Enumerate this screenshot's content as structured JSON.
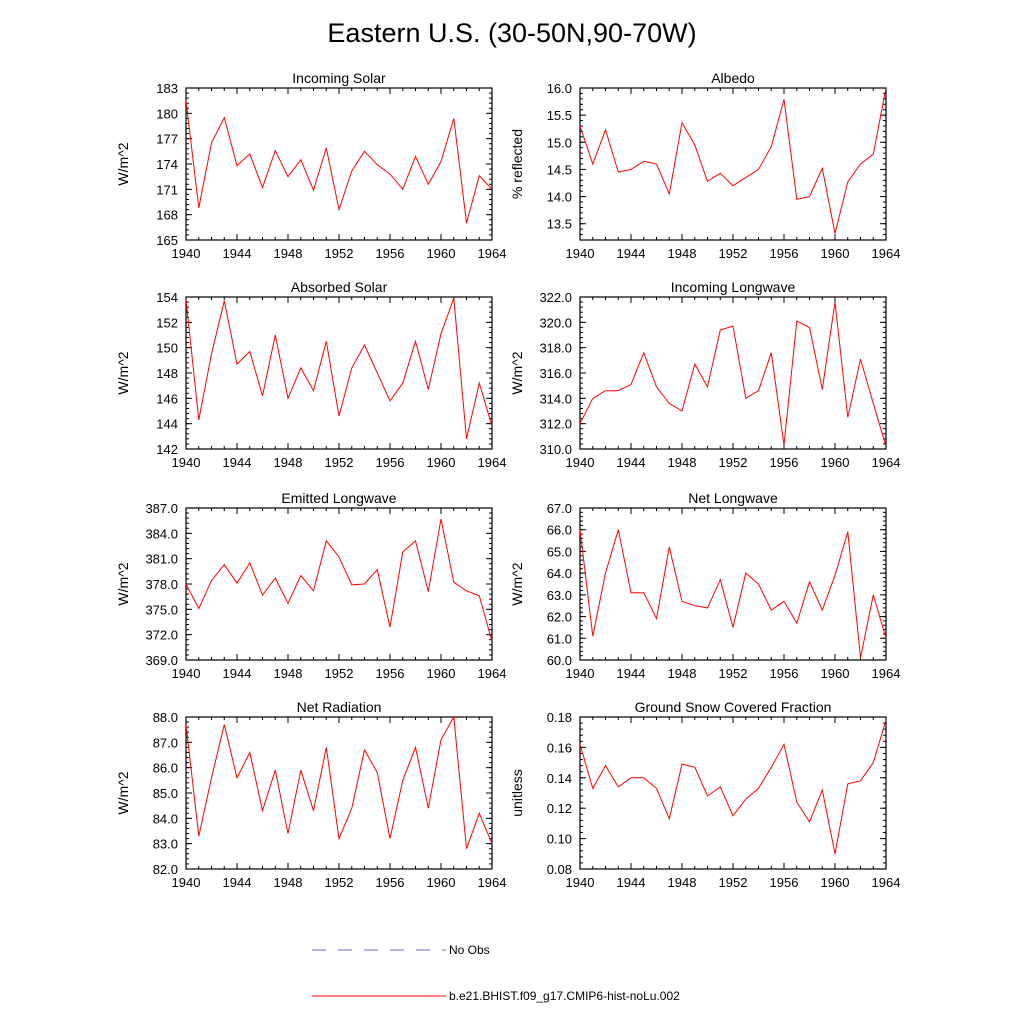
{
  "title": "Eastern U.S. (30-50N,90-70W)",
  "legend": {
    "obs_label": "No Obs",
    "obs_color": "#6b6bd6",
    "model_label": "b.e21.BHIST.f09_g17.CMIP6-hist-noLu.002",
    "model_color": "#ff0000"
  },
  "chart_data": [
    {
      "type": "line",
      "title": "Incoming Solar",
      "ylabel": "W/m^2",
      "xlim": [
        1940,
        1964
      ],
      "ylim": [
        165,
        183
      ],
      "xticks": [
        "1940",
        "1944",
        "1948",
        "1952",
        "1956",
        "1960",
        "1964"
      ],
      "yticks": [
        "165",
        "168",
        "171",
        "174",
        "177",
        "180",
        "183"
      ],
      "grid": false,
      "series": [
        {
          "color": "#ff0000",
          "x": [
            1940,
            1941,
            1942,
            1943,
            1944,
            1945,
            1946,
            1947,
            1948,
            1949,
            1950,
            1951,
            1952,
            1953,
            1954,
            1955,
            1956,
            1957,
            1958,
            1959,
            1960,
            1961,
            1962,
            1963,
            1964
          ],
          "values": [
            181.5,
            168.8,
            176.5,
            179.5,
            173.8,
            175.2,
            171.2,
            175.6,
            172.5,
            174.5,
            170.9,
            175.9,
            168.6,
            173.2,
            175.5,
            173.9,
            172.8,
            171.0,
            174.9,
            171.6,
            174.3,
            179.4,
            167.0,
            172.6,
            171.0
          ]
        }
      ]
    },
    {
      "type": "line",
      "title": "Albedo",
      "ylabel": "% reflected",
      "xlim": [
        1940,
        1964
      ],
      "ylim": [
        13.2,
        16.0
      ],
      "xticks": [
        "1940",
        "1944",
        "1948",
        "1952",
        "1956",
        "1960",
        "1964"
      ],
      "yticks": [
        "13.5",
        "14.0",
        "14.5",
        "15.0",
        "15.5",
        "16.0"
      ],
      "grid": false,
      "series": [
        {
          "color": "#ff0000",
          "x": [
            1940,
            1941,
            1942,
            1943,
            1944,
            1945,
            1946,
            1947,
            1948,
            1949,
            1950,
            1951,
            1952,
            1953,
            1954,
            1955,
            1956,
            1957,
            1958,
            1959,
            1960,
            1961,
            1962,
            1963,
            1964
          ],
          "values": [
            15.3,
            14.6,
            15.23,
            14.45,
            14.5,
            14.65,
            14.6,
            14.05,
            15.36,
            14.95,
            14.28,
            14.43,
            14.2,
            14.35,
            14.5,
            14.92,
            15.79,
            13.95,
            14.0,
            14.52,
            13.32,
            14.27,
            14.6,
            14.78,
            16.0
          ]
        }
      ]
    },
    {
      "type": "line",
      "title": "Absorbed Solar",
      "ylabel": "W/m^2",
      "xlim": [
        1940,
        1964
      ],
      "ylim": [
        142,
        154
      ],
      "xticks": [
        "1940",
        "1944",
        "1948",
        "1952",
        "1956",
        "1960",
        "1964"
      ],
      "yticks": [
        "142",
        "144",
        "146",
        "148",
        "150",
        "152",
        "154"
      ],
      "grid": false,
      "series": [
        {
          "color": "#ff0000",
          "x": [
            1940,
            1941,
            1942,
            1943,
            1944,
            1945,
            1946,
            1947,
            1948,
            1949,
            1950,
            1951,
            1952,
            1953,
            1954,
            1955,
            1956,
            1957,
            1958,
            1959,
            1960,
            1961,
            1962,
            1963,
            1964
          ],
          "values": [
            153.8,
            144.3,
            149.5,
            153.7,
            148.7,
            149.7,
            146.2,
            151.0,
            146.0,
            148.4,
            146.6,
            150.5,
            144.6,
            148.4,
            150.2,
            148.0,
            145.8,
            147.2,
            150.5,
            146.7,
            151.1,
            153.9,
            142.8,
            147.2,
            143.8
          ]
        }
      ]
    },
    {
      "type": "line",
      "title": "Incoming Longwave",
      "ylabel": "W/m^2",
      "xlim": [
        1940,
        1964
      ],
      "ylim": [
        310.0,
        322.0
      ],
      "xticks": [
        "1940",
        "1944",
        "1948",
        "1952",
        "1956",
        "1960",
        "1964"
      ],
      "yticks": [
        "310.0",
        "312.0",
        "314.0",
        "316.0",
        "318.0",
        "320.0",
        "322.0"
      ],
      "grid": false,
      "series": [
        {
          "color": "#ff0000",
          "x": [
            1940,
            1941,
            1942,
            1943,
            1944,
            1945,
            1946,
            1947,
            1948,
            1949,
            1950,
            1951,
            1952,
            1953,
            1954,
            1955,
            1956,
            1957,
            1958,
            1959,
            1960,
            1961,
            1962,
            1963,
            1964
          ],
          "values": [
            312.0,
            314.0,
            314.6,
            314.6,
            315.1,
            317.6,
            314.9,
            313.6,
            313.0,
            316.7,
            314.9,
            319.4,
            319.7,
            314.0,
            314.6,
            317.6,
            310.3,
            320.1,
            319.6,
            314.7,
            321.6,
            312.5,
            317.1,
            313.6,
            310.2
          ]
        }
      ]
    },
    {
      "type": "line",
      "title": "Emitted Longwave",
      "ylabel": "W/m^2",
      "xlim": [
        1940,
        1964
      ],
      "ylim": [
        369.0,
        387.0
      ],
      "xticks": [
        "1940",
        "1944",
        "1948",
        "1952",
        "1956",
        "1960",
        "1964"
      ],
      "yticks": [
        "369.0",
        "372.0",
        "375.0",
        "378.0",
        "381.0",
        "384.0",
        "387.0"
      ],
      "grid": false,
      "series": [
        {
          "color": "#ff0000",
          "x": [
            1940,
            1941,
            1942,
            1943,
            1944,
            1945,
            1946,
            1947,
            1948,
            1949,
            1950,
            1951,
            1952,
            1953,
            1954,
            1955,
            1956,
            1957,
            1958,
            1959,
            1960,
            1961,
            1962,
            1963,
            1964
          ],
          "values": [
            378.0,
            375.1,
            378.4,
            380.3,
            378.1,
            380.5,
            376.7,
            378.7,
            375.7,
            379.0,
            377.2,
            383.1,
            381.2,
            377.9,
            378.0,
            379.7,
            372.9,
            381.8,
            383.1,
            377.1,
            385.7,
            378.2,
            377.2,
            376.6,
            371.2
          ]
        }
      ]
    },
    {
      "type": "line",
      "title": "Net Longwave",
      "ylabel": "W/m^2",
      "xlim": [
        1940,
        1964
      ],
      "ylim": [
        60.0,
        67.0
      ],
      "xticks": [
        "1940",
        "1944",
        "1948",
        "1952",
        "1956",
        "1960",
        "1964"
      ],
      "yticks": [
        "60.0",
        "61.0",
        "62.0",
        "63.0",
        "64.0",
        "65.0",
        "66.0",
        "67.0"
      ],
      "grid": false,
      "series": [
        {
          "color": "#ff0000",
          "x": [
            1940,
            1941,
            1942,
            1943,
            1944,
            1945,
            1946,
            1947,
            1948,
            1949,
            1950,
            1951,
            1952,
            1953,
            1954,
            1955,
            1956,
            1957,
            1958,
            1959,
            1960,
            1961,
            1962,
            1963,
            1964
          ],
          "values": [
            66.0,
            61.1,
            64.0,
            66.0,
            63.1,
            63.1,
            61.9,
            65.2,
            62.7,
            62.5,
            62.4,
            63.7,
            61.5,
            64.0,
            63.5,
            62.3,
            62.7,
            61.7,
            63.6,
            62.3,
            63.9,
            65.9,
            60.1,
            63.0,
            61.0
          ]
        }
      ]
    },
    {
      "type": "line",
      "title": "Net Radiation",
      "ylabel": "W/m^2",
      "xlim": [
        1940,
        1964
      ],
      "ylim": [
        82.0,
        88.0
      ],
      "xticks": [
        "1940",
        "1944",
        "1948",
        "1952",
        "1956",
        "1960",
        "1964"
      ],
      "yticks": [
        "82.0",
        "83.0",
        "84.0",
        "85.0",
        "86.0",
        "87.0",
        "88.0"
      ],
      "grid": false,
      "series": [
        {
          "color": "#ff0000",
          "x": [
            1940,
            1941,
            1942,
            1943,
            1944,
            1945,
            1946,
            1947,
            1948,
            1949,
            1950,
            1951,
            1952,
            1953,
            1954,
            1955,
            1956,
            1957,
            1958,
            1959,
            1960,
            1961,
            1962,
            1963,
            1964
          ],
          "values": [
            87.7,
            83.3,
            85.6,
            87.7,
            85.6,
            86.6,
            84.3,
            85.9,
            83.4,
            85.9,
            84.3,
            86.8,
            83.2,
            84.4,
            86.7,
            85.8,
            83.2,
            85.5,
            86.8,
            84.4,
            87.1,
            88.0,
            82.8,
            84.2,
            83.0
          ]
        }
      ]
    },
    {
      "type": "line",
      "title": "Ground Snow Covered Fraction",
      "ylabel": "unitless",
      "xlim": [
        1940,
        1964
      ],
      "ylim": [
        0.08,
        0.18
      ],
      "xticks": [
        "1940",
        "1944",
        "1948",
        "1952",
        "1956",
        "1960",
        "1964"
      ],
      "yticks": [
        "0.08",
        "0.10",
        "0.12",
        "0.14",
        "0.16",
        "0.18"
      ],
      "grid": false,
      "series": [
        {
          "color": "#ff0000",
          "x": [
            1940,
            1941,
            1942,
            1943,
            1944,
            1945,
            1946,
            1947,
            1948,
            1949,
            1950,
            1951,
            1952,
            1953,
            1954,
            1955,
            1956,
            1957,
            1958,
            1959,
            1960,
            1961,
            1962,
            1963,
            1964
          ],
          "values": [
            0.162,
            0.133,
            0.148,
            0.134,
            0.14,
            0.14,
            0.133,
            0.113,
            0.149,
            0.147,
            0.128,
            0.134,
            0.115,
            0.126,
            0.133,
            0.147,
            0.162,
            0.124,
            0.111,
            0.132,
            0.09,
            0.136,
            0.138,
            0.15,
            0.178
          ]
        }
      ]
    }
  ]
}
